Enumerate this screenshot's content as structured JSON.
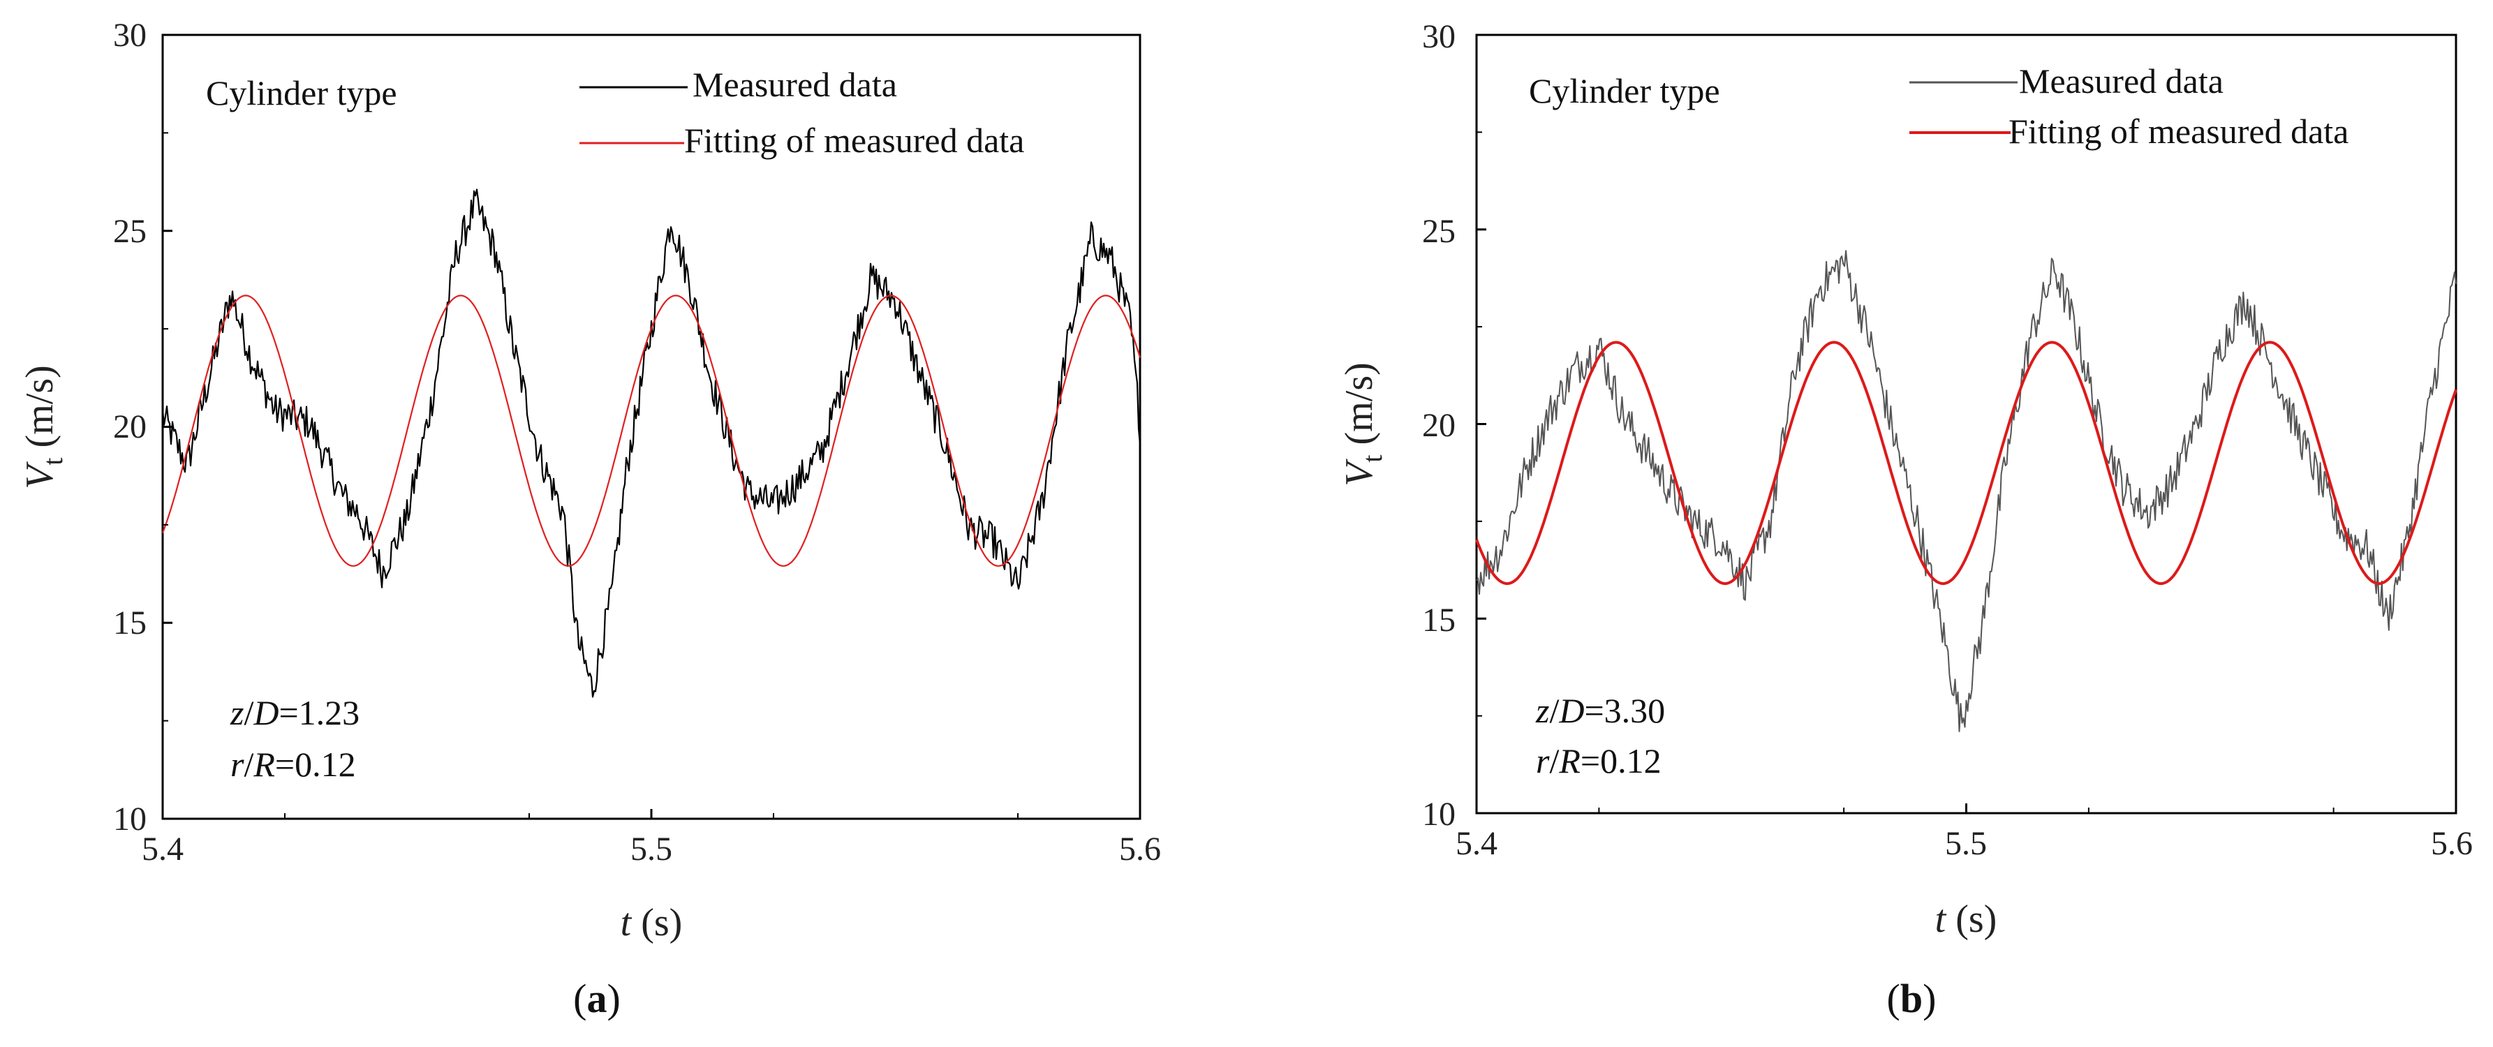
{
  "chart_data": [
    {
      "id": "a",
      "type": "line",
      "caption_open": "(",
      "caption": "a",
      "caption_close": ")",
      "xlabel_var": "t",
      "xlabel_unit": " (s)",
      "ylabel_var": "V",
      "ylabel_sub": "t",
      "ylabel_unit": " (m/s)",
      "xlim": [
        5.4,
        5.6
      ],
      "ylim": [
        10,
        30
      ],
      "x_ticks": [
        "5.4",
        "5.5",
        "5.6"
      ],
      "y_ticks": [
        "10",
        "15",
        "20",
        "25",
        "30"
      ],
      "legend_title": "Cylinder type",
      "series": [
        {
          "name": "Measured data",
          "color": "#000000",
          "keypoints": [
            [
              5.4,
              20.3
            ],
            [
              5.405,
              19.0
            ],
            [
              5.41,
              21.5
            ],
            [
              5.414,
              23.4
            ],
            [
              5.418,
              21.8
            ],
            [
              5.423,
              20.4
            ],
            [
              5.43,
              20.1
            ],
            [
              5.437,
              18.2
            ],
            [
              5.44,
              17.8
            ],
            [
              5.445,
              16.3
            ],
            [
              5.45,
              17.7
            ],
            [
              5.455,
              20.6
            ],
            [
              5.46,
              24.4
            ],
            [
              5.464,
              25.7
            ],
            [
              5.468,
              24.5
            ],
            [
              5.472,
              21.9
            ],
            [
              5.477,
              19.3
            ],
            [
              5.482,
              17.8
            ],
            [
              5.485,
              14.5
            ],
            [
              5.488,
              13.3
            ],
            [
              5.492,
              15.8
            ],
            [
              5.495,
              19.0
            ],
            [
              5.5,
              22.5
            ],
            [
              5.504,
              25.3
            ],
            [
              5.508,
              23.6
            ],
            [
              5.512,
              21.3
            ],
            [
              5.517,
              19.2
            ],
            [
              5.52,
              18.3
            ],
            [
              5.525,
              18.0
            ],
            [
              5.53,
              18.6
            ],
            [
              5.535,
              19.4
            ],
            [
              5.54,
              21.5
            ],
            [
              5.545,
              23.8
            ],
            [
              5.55,
              23.2
            ],
            [
              5.555,
              21.3
            ],
            [
              5.56,
              19.6
            ],
            [
              5.565,
              17.4
            ],
            [
              5.57,
              17.1
            ],
            [
              5.575,
              15.9
            ],
            [
              5.58,
              18.1
            ],
            [
              5.585,
              22.0
            ],
            [
              5.59,
              24.8
            ],
            [
              5.594,
              24.3
            ],
            [
              5.598,
              22.7
            ],
            [
              5.6,
              20.0
            ]
          ],
          "noise": 0.45
        },
        {
          "name": "Fitting of measured data",
          "color": "#e02020",
          "sine": {
            "mean": 19.9,
            "amp": 3.45,
            "period": 0.044,
            "peak_t": 5.417
          }
        }
      ],
      "annotations": [
        {
          "var": "z",
          "slash": "/",
          "var2": "D",
          "eq": "=1.23"
        },
        {
          "var": "r",
          "slash": "/",
          "var2": "R",
          "eq": "=0.12"
        }
      ]
    },
    {
      "id": "b",
      "type": "line",
      "caption_open": "(",
      "caption": "b",
      "caption_close": ")",
      "xlabel_var": "t",
      "xlabel_unit": " (s)",
      "ylabel_var": "V",
      "ylabel_sub": "t",
      "ylabel_unit": " (m/s)",
      "xlim": [
        5.4,
        5.6
      ],
      "ylim": [
        10,
        30
      ],
      "x_ticks": [
        "5.4",
        "5.5",
        "5.6"
      ],
      "y_ticks": [
        "10",
        "15",
        "20",
        "25",
        "30"
      ],
      "legend_title": "Cylinder type",
      "series": [
        {
          "name": "Measured data",
          "color": "#555555",
          "keypoints": [
            [
              5.4,
              16.0
            ],
            [
              5.405,
              16.8
            ],
            [
              5.41,
              18.8
            ],
            [
              5.415,
              20.3
            ],
            [
              5.42,
              21.4
            ],
            [
              5.425,
              22.0
            ],
            [
              5.43,
              20.2
            ],
            [
              5.435,
              19.2
            ],
            [
              5.44,
              18.2
            ],
            [
              5.445,
              17.4
            ],
            [
              5.45,
              17.0
            ],
            [
              5.455,
              15.9
            ],
            [
              5.46,
              17.5
            ],
            [
              5.465,
              21.4
            ],
            [
              5.47,
              23.5
            ],
            [
              5.475,
              24.2
            ],
            [
              5.48,
              22.3
            ],
            [
              5.485,
              19.8
            ],
            [
              5.49,
              17.5
            ],
            [
              5.495,
              14.8
            ],
            [
              5.499,
              12.3
            ],
            [
              5.503,
              14.6
            ],
            [
              5.508,
              19.0
            ],
            [
              5.513,
              22.2
            ],
            [
              5.518,
              24.0
            ],
            [
              5.522,
              22.6
            ],
            [
              5.527,
              20.1
            ],
            [
              5.532,
              18.4
            ],
            [
              5.537,
              17.7
            ],
            [
              5.542,
              18.5
            ],
            [
              5.547,
              20.0
            ],
            [
              5.552,
              22.0
            ],
            [
              5.557,
              23.2
            ],
            [
              5.562,
              21.6
            ],
            [
              5.567,
              20.0
            ],
            [
              5.572,
              18.6
            ],
            [
              5.577,
              17.2
            ],
            [
              5.582,
              16.8
            ],
            [
              5.586,
              15.0
            ],
            [
              5.59,
              17.0
            ],
            [
              5.595,
              20.8
            ],
            [
              5.6,
              23.8
            ]
          ],
          "noise": 0.5
        },
        {
          "name": "Fitting of measured data",
          "color": "#dd1a1a",
          "sine": {
            "mean": 19.0,
            "amp": 3.1,
            "period": 0.0445,
            "peak_t": 5.4285
          }
        }
      ],
      "annotations": [
        {
          "var": "z",
          "slash": "/",
          "var2": "D",
          "eq": "=3.30"
        },
        {
          "var": "r",
          "slash": "/",
          "var2": "R",
          "eq": "=0.12"
        }
      ]
    }
  ]
}
